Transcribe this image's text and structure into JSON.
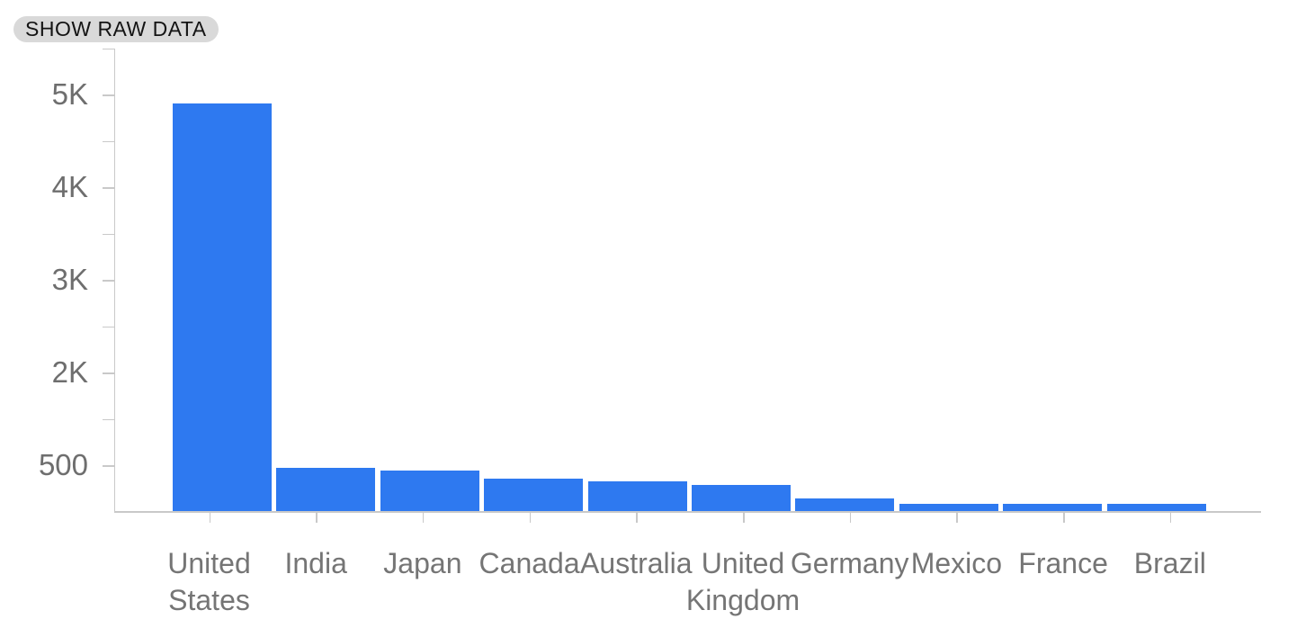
{
  "toolbar": {
    "show_raw_data_label": "SHOW RAW DATA"
  },
  "colors": {
    "bar": "#2e79f0",
    "axis": "#c9c9c9",
    "y_label": "#6e6e6e",
    "x_label": "#757575",
    "chip_bg": "#d9d9d9",
    "chip_text": "#141414"
  },
  "chart_data": {
    "type": "bar",
    "title": "",
    "xlabel": "",
    "ylabel": "",
    "grid": false,
    "legend": false,
    "categories": [
      "United States",
      "India",
      "Japan",
      "Canada",
      "Australia",
      "United Kingdom",
      "Germany",
      "Mexico",
      "France",
      "Brazil"
    ],
    "values": [
      4900,
      470,
      440,
      345,
      320,
      285,
      140,
      80,
      78,
      76
    ],
    "y_axis": {
      "tick_labels_top_to_bottom": [
        "5K",
        "4K",
        "3K",
        "2K",
        "500"
      ],
      "minor_ticks_between_labels": true,
      "top_of_axis_value": "5.5K",
      "bottom_of_axis_value": 0
    }
  }
}
